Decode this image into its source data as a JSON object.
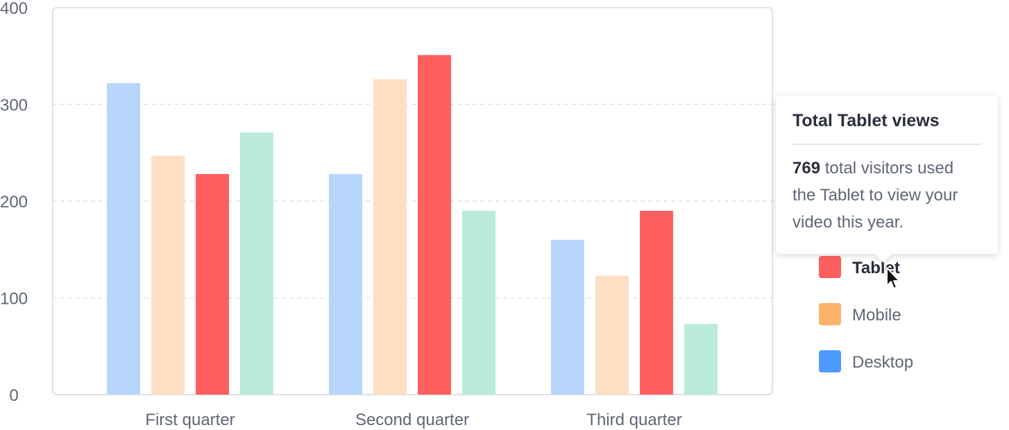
{
  "chart_data": {
    "type": "bar",
    "categories": [
      "First quarter",
      "Second quarter",
      "Third quarter"
    ],
    "series": [
      {
        "name": "Desktop",
        "values": [
          322,
          228,
          160
        ],
        "color": "#b8d6fc"
      },
      {
        "name": "",
        "values": [
          247,
          326,
          123
        ],
        "color": "#fde0c3"
      },
      {
        "name": "Tablet",
        "values": [
          228,
          351,
          190
        ],
        "color": "#ff5f5f"
      },
      {
        "name": "",
        "values": [
          271,
          190,
          73
        ],
        "color": "#baebd9"
      }
    ],
    "ylim": [
      0,
      400
    ],
    "yticks": [
      0,
      100,
      200,
      300,
      400
    ],
    "grid": true,
    "legend_position": "right",
    "legend": [
      {
        "label": "Tablet",
        "color": "#ff5f5f",
        "active": true
      },
      {
        "label": "Mobile",
        "color": "#fdb26c",
        "active": false
      },
      {
        "label": "Desktop",
        "color": "#4d9bff",
        "active": false
      }
    ],
    "colors": {
      "grid": "#dfe1e5",
      "frame": "#dfe1e5",
      "text": "#5f6675"
    }
  },
  "tooltip": {
    "title": "Total Tablet views",
    "count": "769",
    "body": " total visitors used the Tablet to view your video this year."
  },
  "icons": {
    "cursor": "arrow-cursor-icon"
  }
}
